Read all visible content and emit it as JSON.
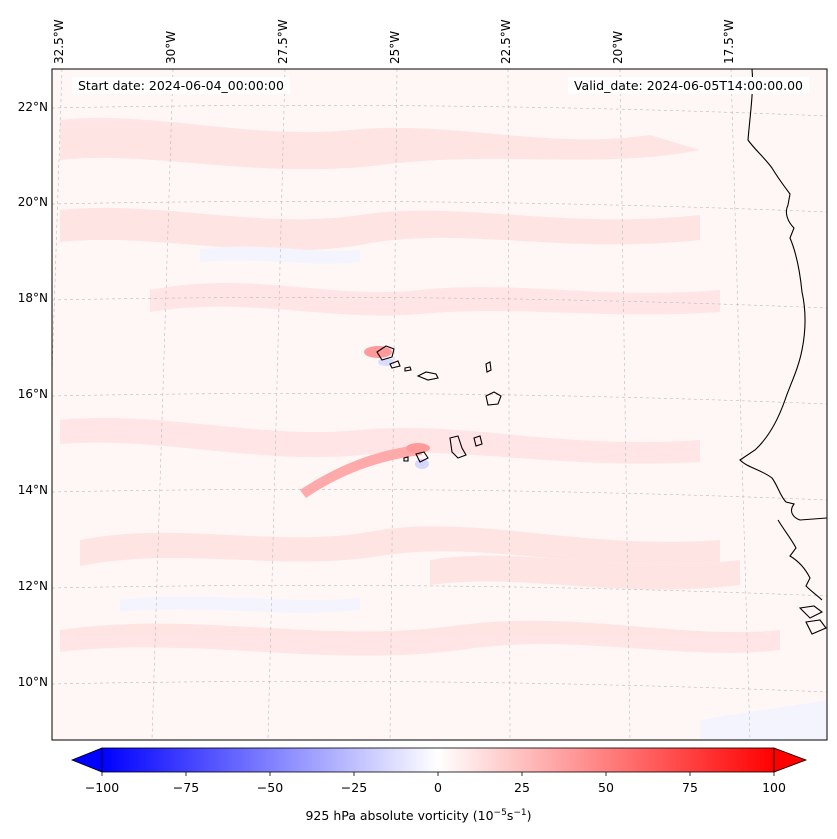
{
  "header": {
    "start_date": "Start date: 2024-06-04_00:00:00",
    "valid_date": "Valid_date: 2024-06-05T14:00:00.00"
  },
  "map": {
    "lon_labels": [
      "32.5°W",
      "30°W",
      "27.5°W",
      "25°W",
      "22.5°W",
      "20°W",
      "17.5°W"
    ],
    "lat_labels": [
      "22°N",
      "20°N",
      "18°N",
      "16°N",
      "14°N",
      "12°N",
      "10°N"
    ],
    "gridlines": true
  },
  "colorbar": {
    "label_main": "925 hPa absolute vorticity (10",
    "label_exp1": "−5",
    "label_mid": "s",
    "label_exp2": "−1",
    "label_end": ")",
    "ticks": [
      "−100",
      "−75",
      "−50",
      "−25",
      "0",
      "25",
      "50",
      "75",
      "100"
    ],
    "range": [
      -100,
      100
    ],
    "extend": "both",
    "colors": {
      "negative_end": "#0000ff",
      "center": "#ffffff",
      "positive_end": "#ff0000"
    }
  }
}
